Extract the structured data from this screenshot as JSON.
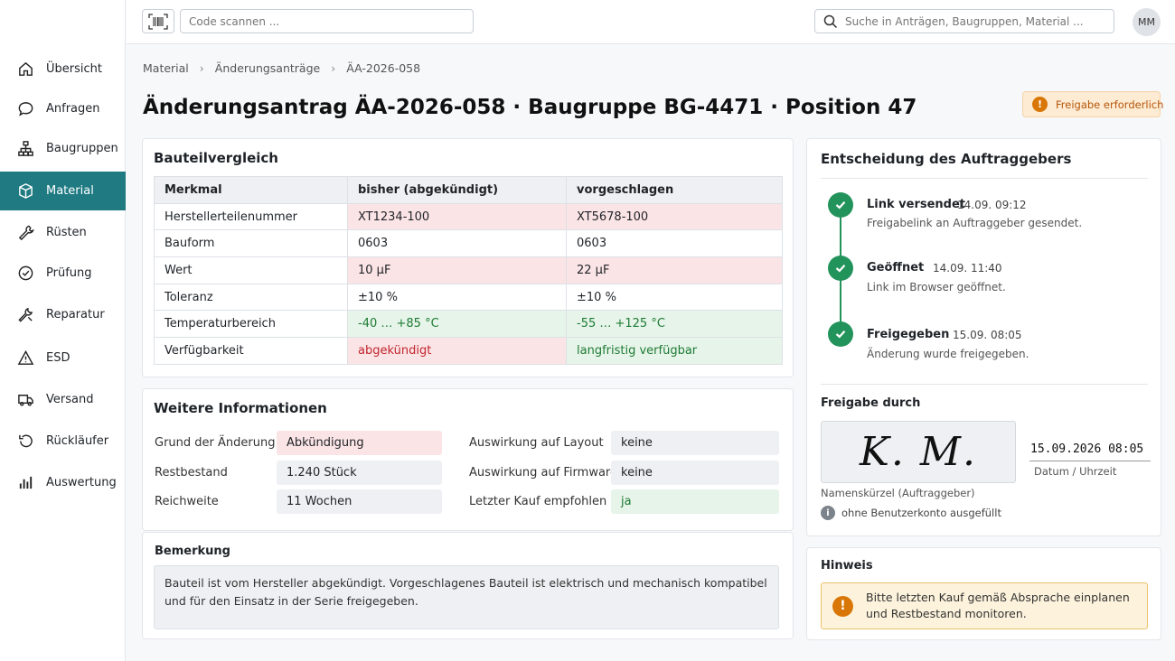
{
  "sidebar": {
    "items": [
      {
        "label": "Übersicht",
        "icon": "home-icon"
      },
      {
        "label": "Anfragen",
        "icon": "chat-icon"
      },
      {
        "label": "Baugruppen",
        "icon": "hierarchy-icon"
      },
      {
        "label": "Material",
        "icon": "box-icon",
        "active": true
      },
      {
        "label": "Rüsten",
        "icon": "wrench-icon"
      },
      {
        "label": "Prüfung",
        "icon": "check-circle-icon"
      },
      {
        "label": "Reparatur",
        "icon": "tool-icon"
      },
      {
        "label": "ESD",
        "icon": "warning-triangle-icon"
      },
      {
        "label": "Versand",
        "icon": "truck-icon"
      },
      {
        "label": "Rückläufer",
        "icon": "return-icon"
      },
      {
        "label": "Auswertung",
        "icon": "bar-chart-icon"
      }
    ]
  },
  "topbar": {
    "scan_placeholder": "Code scannen ...",
    "search_placeholder": "Suche in Anträgen, Baugruppen, Material ...",
    "avatar_initials": "MM"
  },
  "breadcrumb": [
    "Material",
    "Änderungsanträge",
    "ÄA-2026-058"
  ],
  "page": {
    "title": "Änderungsantrag ÄA-2026-058 · Baugruppe BG-4471 · Position 47",
    "status": "Freigabe erforderlich"
  },
  "comparison": {
    "title": "Bauteilvergleich",
    "headers": [
      "Merkmal",
      "bisher (abgekündigt)",
      "vorgeschlagen"
    ],
    "rows": [
      {
        "feature": "Herstellerteilenummer",
        "old": "XT1234-100",
        "new": "XT5678-100"
      },
      {
        "feature": "Bauform",
        "old": "0603",
        "new": "0603"
      },
      {
        "feature": "Wert",
        "old": "10 µF",
        "new": "22 µF"
      },
      {
        "feature": "Toleranz",
        "old": "±10 %",
        "new": "±10 %"
      },
      {
        "feature": "Temperaturbereich",
        "old": "-40 … +85 °C",
        "new": "-55 … +125 °C"
      },
      {
        "feature": "Verfügbarkeit",
        "old": "abgekündigt",
        "new": "langfristig verfügbar"
      }
    ]
  },
  "info": {
    "title": "Weitere Informationen",
    "left": [
      {
        "label": "Grund der Änderung",
        "value": "Abkündigung"
      },
      {
        "label": "Restbestand",
        "value": "1.240 Stück"
      },
      {
        "label": "Reichweite",
        "value": "11 Wochen"
      }
    ],
    "right": [
      {
        "label": "Auswirkung auf Layout",
        "value": "keine"
      },
      {
        "label": "Auswirkung auf Firmware",
        "value": "keine"
      },
      {
        "label": "Letzter Kauf empfohlen",
        "value": "ja"
      }
    ]
  },
  "remark": {
    "title": "Bemerkung",
    "line1": "Bauteil ist vom Hersteller abgekündigt. Vorgeschlagenes Bauteil ist elektrisch und mechanisch kompatibel",
    "line2": "und für den Einsatz in der Serie freigegeben."
  },
  "decision": {
    "title": "Entscheidung des Auftraggebers",
    "steps": [
      {
        "title": "Link versendet",
        "time": "14.09. 09:12",
        "desc": "Freigabelink an Auftraggeber gesendet."
      },
      {
        "title": "Geöffnet",
        "time": "14.09. 11:40",
        "desc": "Link im Browser geöffnet."
      },
      {
        "title": "Freigegeben",
        "time": "15.09. 08:05",
        "desc": "Änderung wurde freigegeben."
      }
    ],
    "release_title": "Freigabe durch",
    "signature": "K. M.",
    "signature_label": "Namenskürzel (Auftraggeber)",
    "datetime": "15.09.2026 08:05",
    "datetime_label": "Datum / Uhrzeit",
    "account_note": "ohne Benutzerkonto ausgefüllt"
  },
  "hint": {
    "title": "Hinweis",
    "line1": "Bitte letzten Kauf gemäß Absprache einplanen",
    "line2": "und Restbestand monitoren."
  },
  "colors": {
    "accent": "#1f7a82",
    "success": "#22935a",
    "warning": "#d97706",
    "danger": "#c0262d"
  }
}
